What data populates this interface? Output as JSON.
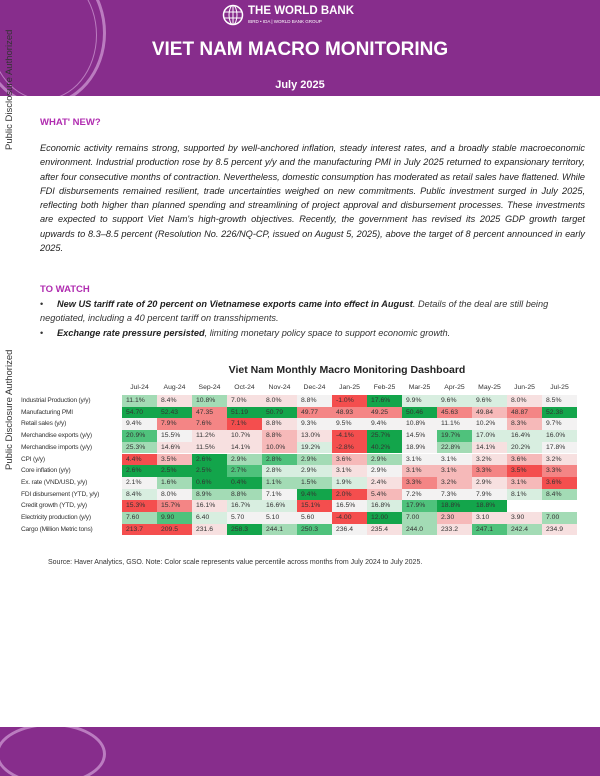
{
  "header": {
    "org": "THE WORLD BANK",
    "org_sub": "IBRD • IDA | WORLD BANK GROUP",
    "title": "VIET NAM MACRO MONITORING",
    "date": "July 2025"
  },
  "side_label": "Public Disclosure Authorized",
  "whats_new": {
    "heading": "WHAT' NEW?",
    "body": "Economic activity remains strong, supported by well-anchored inflation, steady interest rates, and a broadly stable macroeconomic environment. Industrial production rose by 8.5 percent y/y and the manufacturing PMI in July 2025 returned to expansionary territory, after four consecutive months of contraction. Nevertheless, domestic consumption has moderated as retail sales have flattened. While FDI disbursements remained resilient, trade uncertainties weighed on new commitments. Public investment surged in July 2025, reflecting both higher than planned spending and streamlining of project approval and disbursement processes. These investments are expected to support Viet Nam's high-growth objectives. Recently, the government has revised its 2025 GDP growth target upwards to 8.3–8.5 percent (Resolution No. 226/NQ-CP, issued on August 5, 2025), above the target of 8 percent announced in early 2025."
  },
  "to_watch": {
    "heading": "TO WATCH",
    "bullets": [
      {
        "bold": "New US tariff rate of 20 percent on Vietnamese exports came into effect in August",
        "rest": ". Details of the deal are still being negotiated, including a 40 percent tariff on transshipments."
      },
      {
        "bold": "Exchange rate pressure persisted",
        "rest": ", limiting monetary policy space to support economic growth."
      }
    ]
  },
  "dashboard": {
    "title": "Viet Nam Monthly Macro Monitoring Dashboard",
    "scale_colors": {
      "G3": "#13a54b",
      "G2": "#4fc27c",
      "G1": "#a3dbb5",
      "g0": "#d8eee0",
      "N": "#f3f2f2",
      "r0": "#f7e0e0",
      "R1": "#f6b9b9",
      "R2": "#f48585",
      "R3": "#f44e4e"
    },
    "months": [
      "Jul-24",
      "Aug-24",
      "Sep-24",
      "Oct-24",
      "Nov-24",
      "Dec-24",
      "Jan-25",
      "Feb-25",
      "Mar-25",
      "Apr-25",
      "May-25",
      "Jun-25",
      "Jul-25"
    ],
    "rows": [
      {
        "label": "Industrial Production (y/y)",
        "cells": [
          [
            "11.1%",
            "G1"
          ],
          [
            "8.4%",
            "r0"
          ],
          [
            "10.8%",
            "G1"
          ],
          [
            "7.0%",
            "r0"
          ],
          [
            "8.0%",
            "r0"
          ],
          [
            "8.8%",
            "N"
          ],
          [
            "-1.0%",
            "R3"
          ],
          [
            "17.6%",
            "G3"
          ],
          [
            "9.9%",
            "g0"
          ],
          [
            "9.6%",
            "g0"
          ],
          [
            "9.6%",
            "g0"
          ],
          [
            "8.0%",
            "r0"
          ],
          [
            "8.5%",
            "N"
          ]
        ]
      },
      {
        "label": "Manufacturing PMI",
        "cells": [
          [
            "54.70",
            "G3"
          ],
          [
            "52.43",
            "G3"
          ],
          [
            "47.35",
            "R2"
          ],
          [
            "51.19",
            "G3"
          ],
          [
            "50.79",
            "G3"
          ],
          [
            "49.77",
            "R2"
          ],
          [
            "48.93",
            "R2"
          ],
          [
            "49.25",
            "R2"
          ],
          [
            "50.46",
            "G3"
          ],
          [
            "45.63",
            "R2"
          ],
          [
            "49.84",
            "R1"
          ],
          [
            "48.87",
            "R2"
          ],
          [
            "52.38",
            "G3"
          ]
        ]
      },
      {
        "label": "Retail sales (y/y)",
        "cells": [
          [
            "9.4%",
            "N"
          ],
          [
            "7.9%",
            "R2"
          ],
          [
            "7.6%",
            "R2"
          ],
          [
            "7.1%",
            "R3"
          ],
          [
            "8.8%",
            "r0"
          ],
          [
            "9.3%",
            "N"
          ],
          [
            "9.5%",
            "N"
          ],
          [
            "9.4%",
            "N"
          ],
          [
            "10.8%",
            "N"
          ],
          [
            "11.1%",
            "N"
          ],
          [
            "10.2%",
            "N"
          ],
          [
            "8.3%",
            "R1"
          ],
          [
            "9.7%",
            "N"
          ]
        ]
      },
      {
        "label": "Merchandise exports (y/y)",
        "cells": [
          [
            "20.9%",
            "G2"
          ],
          [
            "15.5%",
            "N"
          ],
          [
            "11.2%",
            "r0"
          ],
          [
            "10.7%",
            "r0"
          ],
          [
            "8.8%",
            "R1"
          ],
          [
            "13.0%",
            "r0"
          ],
          [
            "-4.1%",
            "R3"
          ],
          [
            "25.7%",
            "G3"
          ],
          [
            "14.5%",
            "N"
          ],
          [
            "19.7%",
            "G2"
          ],
          [
            "17.0%",
            "g0"
          ],
          [
            "16.4%",
            "g0"
          ],
          [
            "16.0%",
            "g0"
          ]
        ]
      },
      {
        "label": "Merchandise imports (y/y)",
        "cells": [
          [
            "25.3%",
            "G1"
          ],
          [
            "14.6%",
            "r0"
          ],
          [
            "11.5%",
            "r0"
          ],
          [
            "14.1%",
            "r0"
          ],
          [
            "10.0%",
            "R1"
          ],
          [
            "19.2%",
            "g0"
          ],
          [
            "-2.8%",
            "R3"
          ],
          [
            "40.2%",
            "G3"
          ],
          [
            "18.9%",
            "N"
          ],
          [
            "22.8%",
            "G1"
          ],
          [
            "14.1%",
            "r0"
          ],
          [
            "20.2%",
            "g0"
          ],
          [
            "17.8%",
            "N"
          ]
        ]
      },
      {
        "label": "CPI (y/y)",
        "cells": [
          [
            "4.4%",
            "R3"
          ],
          [
            "3.5%",
            "R1"
          ],
          [
            "2.6%",
            "G3"
          ],
          [
            "2.9%",
            "G1"
          ],
          [
            "2.8%",
            "G2"
          ],
          [
            "2.9%",
            "G1"
          ],
          [
            "3.6%",
            "R1"
          ],
          [
            "2.9%",
            "G1"
          ],
          [
            "3.1%",
            "N"
          ],
          [
            "3.1%",
            "N"
          ],
          [
            "3.2%",
            "r0"
          ],
          [
            "3.6%",
            "R1"
          ],
          [
            "3.2%",
            "r0"
          ]
        ]
      },
      {
        "label": "Core inflation (y/y)",
        "cells": [
          [
            "2.6%",
            "G3"
          ],
          [
            "2.5%",
            "G3"
          ],
          [
            "2.5%",
            "G3"
          ],
          [
            "2.7%",
            "G2"
          ],
          [
            "2.8%",
            "g0"
          ],
          [
            "2.9%",
            "g0"
          ],
          [
            "3.1%",
            "r0"
          ],
          [
            "2.9%",
            "N"
          ],
          [
            "3.1%",
            "R1"
          ],
          [
            "3.1%",
            "R1"
          ],
          [
            "3.3%",
            "R2"
          ],
          [
            "3.5%",
            "R3"
          ],
          [
            "3.3%",
            "R2"
          ]
        ]
      },
      {
        "label": "Ex. rate (VND/USD, y/y)",
        "cells": [
          [
            "2.1%",
            "N"
          ],
          [
            "1.6%",
            "G1"
          ],
          [
            "0.6%",
            "G3"
          ],
          [
            "0.4%",
            "G3"
          ],
          [
            "1.1%",
            "G1"
          ],
          [
            "1.5%",
            "G1"
          ],
          [
            "1.9%",
            "g0"
          ],
          [
            "2.4%",
            "r0"
          ],
          [
            "3.3%",
            "R2"
          ],
          [
            "3.2%",
            "R1"
          ],
          [
            "2.9%",
            "r0"
          ],
          [
            "3.1%",
            "R1"
          ],
          [
            "3.6%",
            "R3"
          ]
        ]
      },
      {
        "label": "FDI disbursement (YTD, y/y)",
        "cells": [
          [
            "8.4%",
            "g0"
          ],
          [
            "8.0%",
            "N"
          ],
          [
            "8.9%",
            "G1"
          ],
          [
            "8.8%",
            "G1"
          ],
          [
            "7.1%",
            "N"
          ],
          [
            "9.4%",
            "G3"
          ],
          [
            "2.0%",
            "R3"
          ],
          [
            "5.4%",
            "R1"
          ],
          [
            "7.2%",
            "N"
          ],
          [
            "7.3%",
            "N"
          ],
          [
            "7.9%",
            "N"
          ],
          [
            "8.1%",
            "g0"
          ],
          [
            "8.4%",
            "G1"
          ]
        ]
      },
      {
        "label": "Credit growth (YTD, y/y)",
        "cells": [
          [
            "15.3%",
            "R3"
          ],
          [
            "15.7%",
            "R2"
          ],
          [
            "16.1%",
            "r0"
          ],
          [
            "16.7%",
            "g0"
          ],
          [
            "16.6%",
            "g0"
          ],
          [
            "15.1%",
            "R3"
          ],
          [
            "16.5%",
            "N"
          ],
          [
            "16.8%",
            "g0"
          ],
          [
            "17.9%",
            "G2"
          ],
          [
            "18.8%",
            "G3"
          ],
          [
            "18.8%",
            "G3"
          ],
          [
            "",
            ""
          ],
          [
            "",
            ""
          ]
        ]
      },
      {
        "label": "Electricity production (y/y)",
        "cells": [
          [
            "7.60",
            "G1"
          ],
          [
            "9.90",
            "G2"
          ],
          [
            "6.40",
            "g0"
          ],
          [
            "5.70",
            "N"
          ],
          [
            "5.10",
            "N"
          ],
          [
            "5.60",
            "N"
          ],
          [
            "-4.00",
            "R3"
          ],
          [
            "12.00",
            "G3"
          ],
          [
            "7.00",
            "G1"
          ],
          [
            "2.30",
            "R1"
          ],
          [
            "3.10",
            "r0"
          ],
          [
            "3.90",
            "r0"
          ],
          [
            "7.00",
            "G1"
          ]
        ]
      },
      {
        "label": "Cargo (Million Metric tons)",
        "cells": [
          [
            "213.7",
            "R3"
          ],
          [
            "209.5",
            "R3"
          ],
          [
            "231.6",
            "r0"
          ],
          [
            "258.3",
            "G3"
          ],
          [
            "244.1",
            "G1"
          ],
          [
            "250.3",
            "G2"
          ],
          [
            "236.4",
            "N"
          ],
          [
            "235.4",
            "r0"
          ],
          [
            "244.0",
            "G1"
          ],
          [
            "233.2",
            "r0"
          ],
          [
            "247.1",
            "G2"
          ],
          [
            "242.4",
            "G1"
          ],
          [
            "234.9",
            "r0"
          ]
        ]
      }
    ],
    "source": "Source: Haver Analytics, GSO. Note: Color scale represents value percentile across months from July 2024 to July 2025."
  }
}
